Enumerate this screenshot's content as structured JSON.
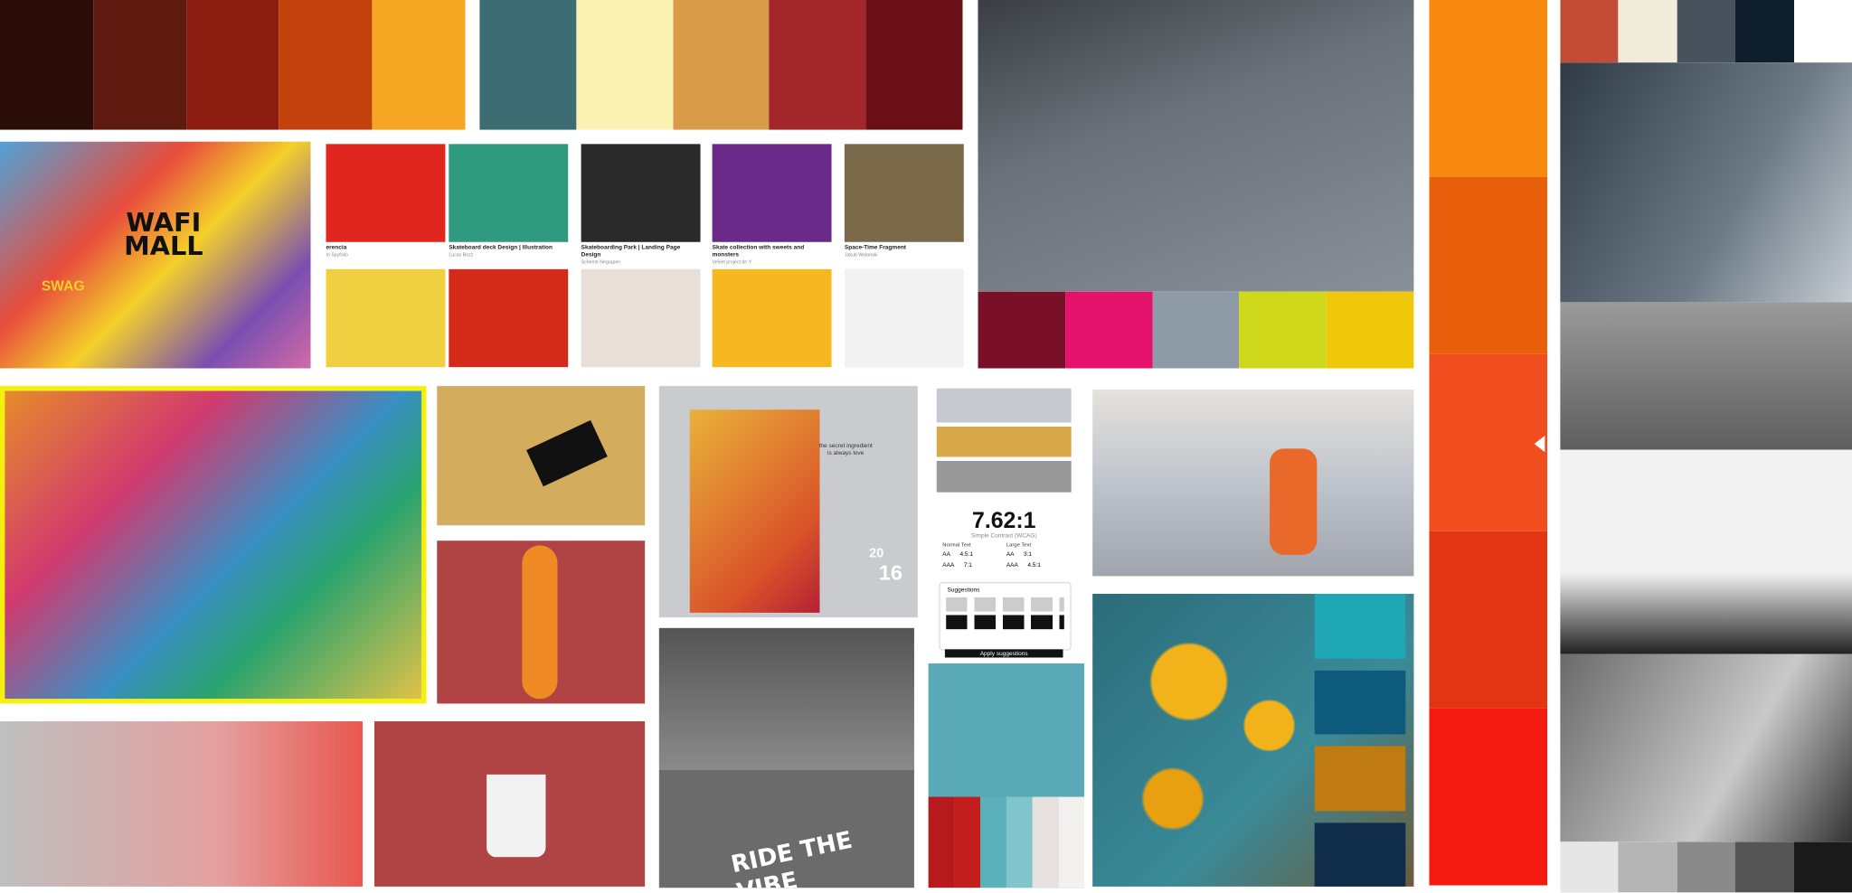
{
  "palettes": {
    "warm_top": [
      "#2a0d08",
      "#5e1a0e",
      "#8b1c10",
      "#c2410c",
      "#f5a623"
    ],
    "teal_top": [
      "#3d6b72",
      "#fbf1b0",
      "#d89c48",
      "#a3262a",
      "#6b0f17"
    ],
    "skate_photo": [
      "#7a0f2a",
      "#e5126b",
      "#8e9aa6",
      "#cfd81a",
      "#f0c80a"
    ],
    "orange_strip": [
      "#f7890e",
      "#e8600c",
      "#f04e1e",
      "#e33414",
      "#f51a10"
    ],
    "right_top": [
      "#c44b36",
      "#f1ecd9",
      "#48525c",
      "#0f1e2b",
      "#ffffff"
    ],
    "right_bottom": [
      "#e6e6e6",
      "#b5b5b5",
      "#8a8a8a",
      "#555555",
      "#1a1a1a"
    ],
    "wheel_stripes": [
      "#b8191d",
      "#c21e1e",
      "#5bb0bb",
      "#7fc5cb",
      "#e7e2e0",
      "#f3f1ee"
    ],
    "flower_swatches": [
      "#1fa7b5",
      "#0e5a7d",
      "#c07a12",
      "#0f2c4a"
    ]
  },
  "behance": {
    "cards": [
      {
        "title": "erencia",
        "author": "In Spyfolio"
      },
      {
        "title": "Skateboard deck Design | Illustration",
        "author": "Lucas Bozz"
      },
      {
        "title": "Skateboarding Park | Landing Page Design",
        "author": "Scheme Negrapen"
      },
      {
        "title": "Skate collection with sweets and monsters",
        "author": "Velvet project de Y"
      },
      {
        "title": "Space-Time Fragment",
        "author": "Jakub Wolanski"
      }
    ]
  },
  "graffiti": {
    "line1": "WAFI",
    "line2": "MALL",
    "tag": "SWAG"
  },
  "poster": {
    "tagline_1": "the secret ingredient",
    "tagline_2": "is always love",
    "year_top": "20",
    "year_bottom": "16"
  },
  "slogan": "RIDE THE VIBE",
  "contrast": {
    "ratio": "7.62:1",
    "caption": "Simple Contrast (WCAG)",
    "normal_heading": "Normal Text",
    "large_heading": "Large Text",
    "normal_rows": [
      [
        "AA",
        "4.5:1"
      ],
      [
        "AAA",
        "7:1"
      ]
    ],
    "large_rows": [
      [
        "AA",
        "3:1"
      ],
      [
        "AAA",
        "4.5:1"
      ]
    ],
    "suggestions": "Suggestions",
    "apply": "Apply suggestions"
  }
}
